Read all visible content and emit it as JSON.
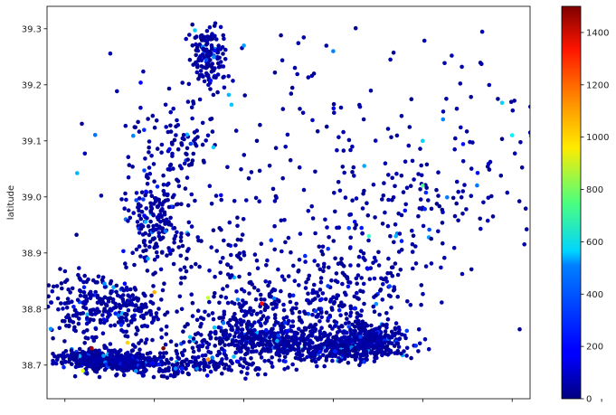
{
  "chart_data": {
    "type": "scatter",
    "title": "",
    "xlabel": "",
    "ylabel": "latitude",
    "ylim": [
      38.64,
      39.34
    ],
    "xlim": [
      -9.52,
      -8.98
    ],
    "y_ticks": [
      38.7,
      38.8,
      38.9,
      39.0,
      39.1,
      39.2,
      39.3
    ],
    "y_tick_labels": [
      "38.7",
      "38.8",
      "38.9",
      "39.0",
      "39.1",
      "39.2",
      "39.3"
    ],
    "x_ticks": [
      -9.5,
      -9.4,
      -9.3,
      -9.2,
      -9.1,
      -9.0,
      -8.9
    ],
    "grid": false,
    "colormap": "jet",
    "colorbar": {
      "range": [
        0,
        1500
      ],
      "ticks": [
        0,
        200,
        400,
        600,
        800,
        1000,
        1200,
        1400
      ],
      "tick_labels": [
        "0",
        "200",
        "400",
        "600",
        "800",
        "1000",
        "1200",
        "1400"
      ]
    },
    "clusters": [
      {
        "x": -9.47,
        "y": 38.71,
        "sx": 0.018,
        "sy": 0.009,
        "n": 280
      },
      {
        "x": -9.43,
        "y": 38.705,
        "sx": 0.02,
        "sy": 0.008,
        "n": 200
      },
      {
        "x": -9.28,
        "y": 38.745,
        "sx": 0.05,
        "sy": 0.015,
        "n": 420
      },
      {
        "x": -9.16,
        "y": 38.745,
        "sx": 0.02,
        "sy": 0.015,
        "n": 320
      },
      {
        "x": -9.2,
        "y": 38.725,
        "sx": 0.03,
        "sy": 0.01,
        "n": 220
      },
      {
        "x": -9.36,
        "y": 38.7,
        "sx": 0.05,
        "sy": 0.01,
        "n": 200
      },
      {
        "x": -9.47,
        "y": 38.8,
        "sx": 0.03,
        "sy": 0.035,
        "n": 220
      },
      {
        "x": -9.42,
        "y": 38.8,
        "sx": 0.02,
        "sy": 0.02,
        "n": 90
      },
      {
        "x": -9.4,
        "y": 38.96,
        "sx": 0.015,
        "sy": 0.05,
        "n": 200
      },
      {
        "x": -9.34,
        "y": 39.25,
        "sx": 0.01,
        "sy": 0.03,
        "n": 150
      },
      {
        "x": -9.37,
        "y": 39.1,
        "sx": 0.02,
        "sy": 0.03,
        "n": 70
      },
      {
        "x": -9.26,
        "y": 38.795,
        "sx": 0.05,
        "sy": 0.02,
        "n": 200
      },
      {
        "x": -9.32,
        "y": 38.88,
        "sx": 0.04,
        "sy": 0.05,
        "n": 80
      },
      {
        "x": -9.2,
        "y": 38.85,
        "sx": 0.04,
        "sy": 0.04,
        "n": 80
      },
      {
        "x": -9.15,
        "y": 38.86,
        "sx": 0.03,
        "sy": 0.04,
        "n": 60
      },
      {
        "x": -9.2,
        "y": 39.02,
        "sx": 0.12,
        "sy": 0.15,
        "n": 260
      },
      {
        "x": -9.06,
        "y": 39.1,
        "sx": 0.06,
        "sy": 0.08,
        "n": 50
      },
      {
        "x": -9.1,
        "y": 38.98,
        "sx": 0.04,
        "sy": 0.03,
        "n": 50
      }
    ],
    "outliers": [
      {
        "x": -9.47,
        "y": 38.73,
        "v": 1450
      },
      {
        "x": -9.39,
        "y": 38.73,
        "v": 1500
      },
      {
        "x": -9.28,
        "y": 38.81,
        "v": 1300
      },
      {
        "x": -9.34,
        "y": 38.71,
        "v": 1100
      },
      {
        "x": -9.4,
        "y": 38.83,
        "v": 1050
      },
      {
        "x": -9.34,
        "y": 38.82,
        "v": 850
      },
      {
        "x": -9.3,
        "y": 39.27,
        "v": 420
      },
      {
        "x": -9.2,
        "y": 39.26,
        "v": 380
      },
      {
        "x": -9.16,
        "y": 38.93,
        "v": 650
      },
      {
        "x": -9.1,
        "y": 39.02,
        "v": 700
      },
      {
        "x": -9.1,
        "y": 39.1,
        "v": 500
      },
      {
        "x": -9.0,
        "y": 39.11,
        "v": 550
      },
      {
        "x": -9.13,
        "y": 38.93,
        "v": 450
      },
      {
        "x": -9.48,
        "y": 38.69,
        "v": 900
      },
      {
        "x": -9.43,
        "y": 38.74,
        "v": 1000
      },
      {
        "x": -9.36,
        "y": 38.75,
        "v": 480
      }
    ]
  }
}
